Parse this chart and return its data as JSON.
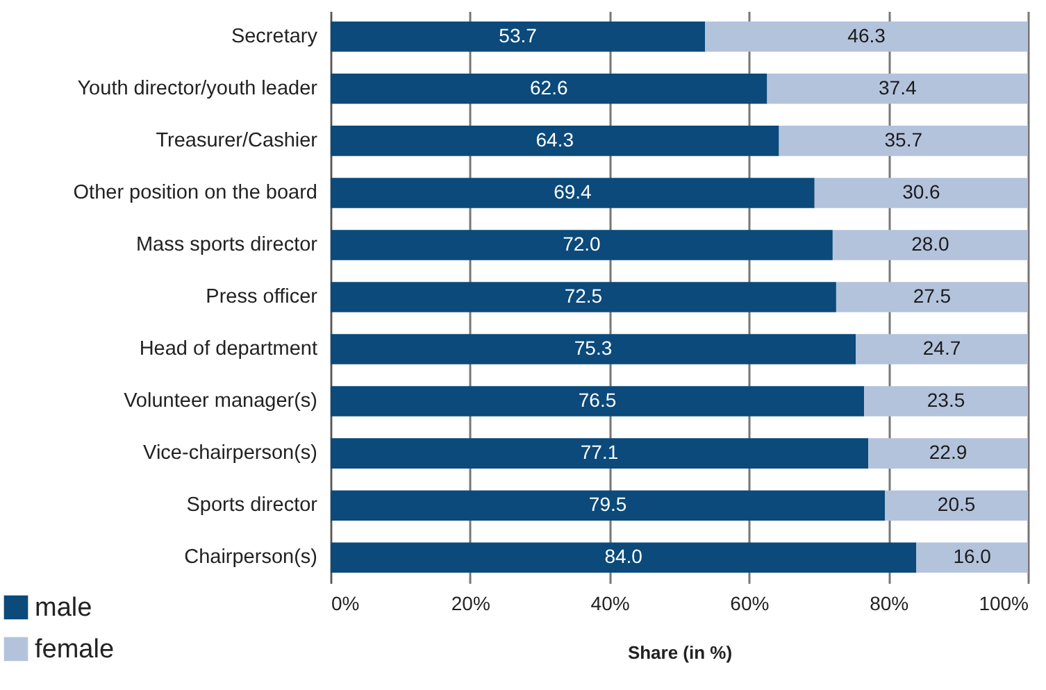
{
  "chart_data": {
    "type": "bar",
    "orientation": "horizontal",
    "stacked": true,
    "categories": [
      "Secretary",
      "Youth director/youth leader",
      "Treasurer/Cashier",
      "Other position on the board",
      "Mass sports director",
      "Press officer",
      "Head of department",
      "Volunteer manager(s)",
      "Vice-chairperson(s)",
      "Sports director",
      "Chairperson(s)"
    ],
    "series": [
      {
        "name": "male",
        "color": "#0b4a7a",
        "values": [
          53.7,
          62.6,
          64.3,
          69.4,
          72.0,
          72.5,
          75.3,
          76.5,
          77.1,
          79.5,
          84.0
        ],
        "value_labels": [
          "53.7",
          "62.6",
          "64.3",
          "69.4",
          "72.0",
          "72.5",
          "75.3",
          "76.5",
          "77.1",
          "79.5",
          "84.0"
        ]
      },
      {
        "name": "female",
        "color": "#b4c3dc",
        "values": [
          46.3,
          37.4,
          35.7,
          30.6,
          28.0,
          27.5,
          24.7,
          23.5,
          22.9,
          20.5,
          16.0
        ],
        "value_labels": [
          "46.3",
          "37.4",
          "35.7",
          "30.6",
          "28.0",
          "27.5",
          "24.7",
          "23.5",
          "22.9",
          "20.5",
          "16.0"
        ]
      }
    ],
    "xlabel": "Share (in %)",
    "xlim": [
      0,
      100
    ],
    "xticks": [
      {
        "value": 0,
        "label": "0%"
      },
      {
        "value": 20,
        "label": "20%"
      },
      {
        "value": 40,
        "label": "40%"
      },
      {
        "value": 60,
        "label": "60%"
      },
      {
        "value": 80,
        "label": "80%"
      },
      {
        "value": 100,
        "label": "100%"
      }
    ],
    "grid": "x",
    "legend": "bottom left"
  }
}
